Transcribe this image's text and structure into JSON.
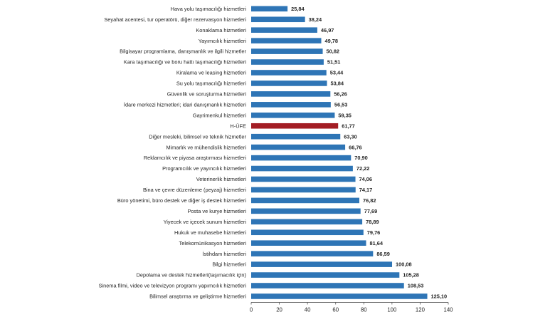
{
  "colors": {
    "bar": "#2E75B6",
    "highlight": "#A31D24",
    "axis": "#595959",
    "text": "#262626"
  },
  "chart_data": {
    "type": "bar",
    "orientation": "horizontal",
    "title": "",
    "xlabel": "",
    "ylabel": "",
    "xlim": [
      0,
      140
    ],
    "x_ticks": [
      0,
      20,
      40,
      60,
      80,
      100,
      120,
      140
    ],
    "grid": false,
    "legend": "none",
    "highlight_category": "H-ÜFE",
    "categories": [
      "Hava yolu taşımacılığı hizmetleri",
      "Seyahat acentesi, tur operatörü, diğer rezervasyon hizmetleri",
      "Konaklama hizmetleri",
      "Yayımcılık hizmetleri",
      "Bilgisayar programlama, danışmanlık ve ilgili hizmetler",
      "Kara taşımacılığı ve boru hattı taşımacılığı hizmetleri",
      "Kiralama ve leasing hizmetleri",
      "Su yolu taşımacılığı hizmetleri",
      "Güvenlik ve soruşturma hizmetleri",
      "İdare merkezi hizmetleri; idari danışmanlık hizmetleri",
      "Gayrimenkul hizmetleri",
      "H-ÜFE",
      "Diğer mesleki, bilimsel ve teknik hizmetler",
      "Mimarlık ve mühendislik hizmetleri",
      "Reklamcılık ve piyasa araştırması hizmetleri",
      "Programcılık ve yayıncılık hizmetleri",
      "Veterinerlik hizmetleri",
      "Bina ve çevre düzenleme (peyzaj) hizmetleri",
      "Büro yönetimi, büro destek ve diğer iş destek hizmetleri",
      "Posta ve kurye hizmetleri",
      "Yiyecek ve içecek sunum hizmetleri",
      "Hukuk ve muhasebe hizmetleri",
      "Telekomünikasyon hizmetleri",
      "İstihdam hizmetleri",
      "Bilgi hizmetleri",
      "Depolama ve destek hizmetleri(taşımacılık için)",
      "Sinema filmi, video ve televizyon programı yapımcılık hizmetleri",
      "Bilimsel araştırma ve geliştirme hizmetleri"
    ],
    "values": [
      25.84,
      38.24,
      46.97,
      49.78,
      50.82,
      51.51,
      53.44,
      53.84,
      56.26,
      56.53,
      59.35,
      61.77,
      63.3,
      66.76,
      70.9,
      72.22,
      74.06,
      74.17,
      76.82,
      77.69,
      78.89,
      79.76,
      81.64,
      86.59,
      100.08,
      105.28,
      108.53,
      125.1
    ],
    "value_labels": [
      "25,84",
      "38,24",
      "46,97",
      "49,78",
      "50,82",
      "51,51",
      "53,44",
      "53,84",
      "56,26",
      "56,53",
      "59,35",
      "61,77",
      "63,30",
      "66,76",
      "70,90",
      "72,22",
      "74,06",
      "74,17",
      "76,82",
      "77,69",
      "78,89",
      "79,76",
      "81,64",
      "86,59",
      "100,08",
      "105,28",
      "108,53",
      "125,10"
    ]
  }
}
